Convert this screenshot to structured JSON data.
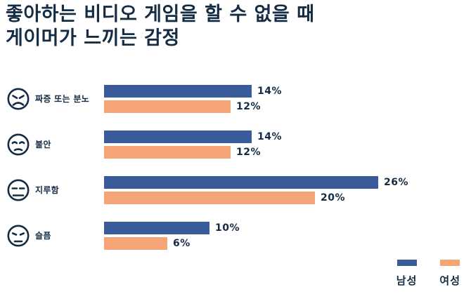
{
  "title": {
    "line1": "좋아하는 비디오 게임을 할 수 없을 때",
    "line2": "게이머가 느끼는 감정"
  },
  "colors": {
    "male": "#3A5B99",
    "female": "#F5A476",
    "text": "#142C44",
    "background": "#FFFFFF"
  },
  "legend": {
    "male_label": "남성",
    "female_label": "여성"
  },
  "rows": [
    {
      "category": "짜증 또는 분노",
      "icon": "angry-face-icon",
      "male_label": "14%",
      "female_label": "12%"
    },
    {
      "category": "불안",
      "icon": "anxious-face-icon",
      "male_label": "14%",
      "female_label": "12%"
    },
    {
      "category": "지루함",
      "icon": "bored-face-icon",
      "male_label": "26%",
      "female_label": "20%"
    },
    {
      "category": "슬픔",
      "icon": "sad-face-icon",
      "male_label": "10%",
      "female_label": "6%"
    }
  ],
  "chart_data": {
    "type": "bar",
    "orientation": "horizontal",
    "title": "좋아하는 비디오 게임을 할 수 없을 때 게이머가 느끼는 감정",
    "categories": [
      "짜증 또는 분노",
      "불안",
      "지루함",
      "슬픔"
    ],
    "series": [
      {
        "name": "남성",
        "color": "#3A5B99",
        "values": [
          14,
          14,
          26,
          10
        ]
      },
      {
        "name": "여성",
        "color": "#F5A476",
        "values": [
          12,
          12,
          20,
          6
        ]
      }
    ],
    "value_suffix": "%",
    "xlim": [
      0,
      28
    ],
    "grid": false,
    "data_labels": true,
    "legend_position": "bottom-right"
  }
}
